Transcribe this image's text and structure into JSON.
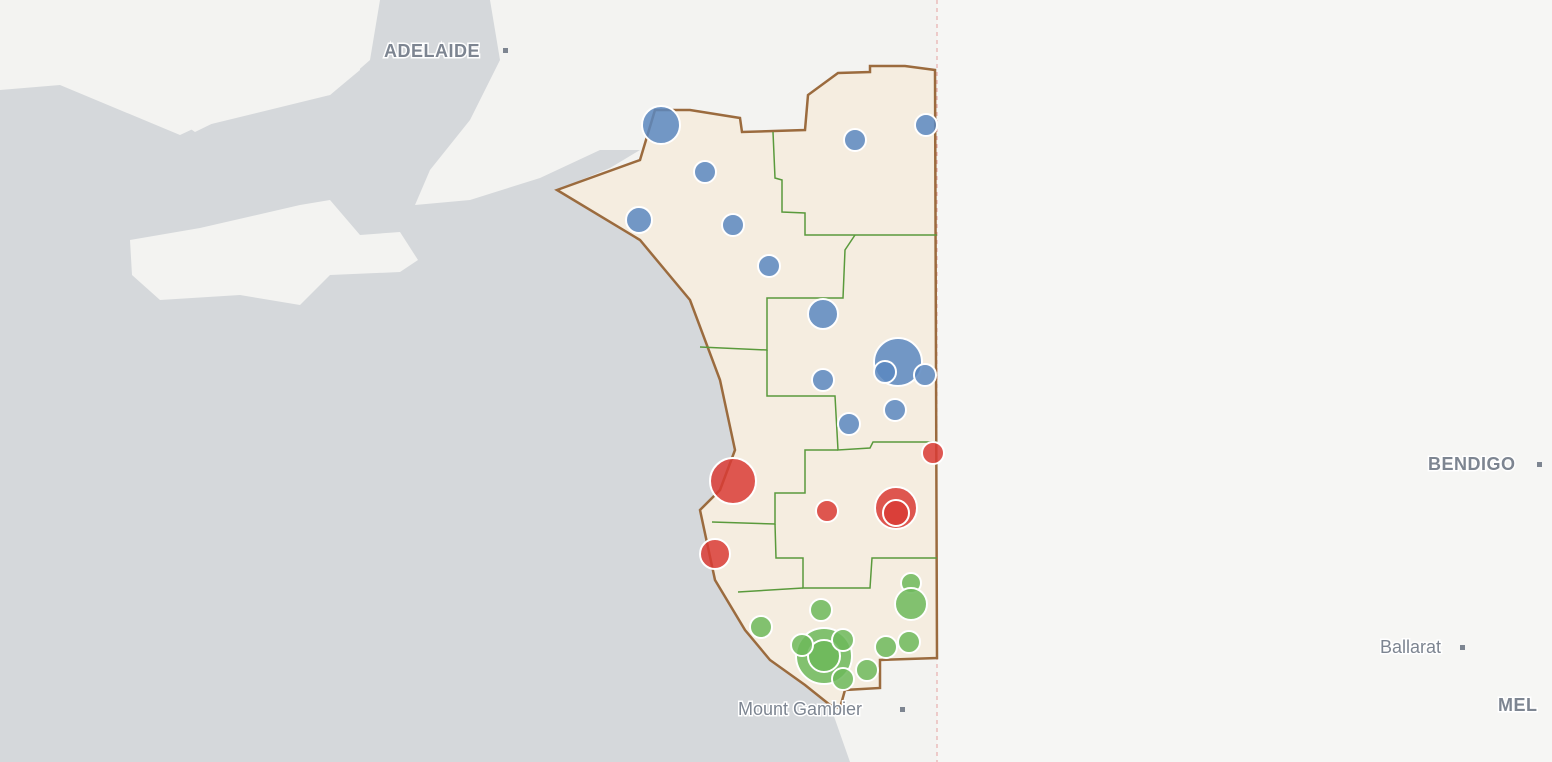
{
  "map": {
    "labels": [
      "ADELAIDE",
      "BENDIGO",
      "Ballarat",
      "Mount Gambier",
      "MEL"
    ]
  }
}
